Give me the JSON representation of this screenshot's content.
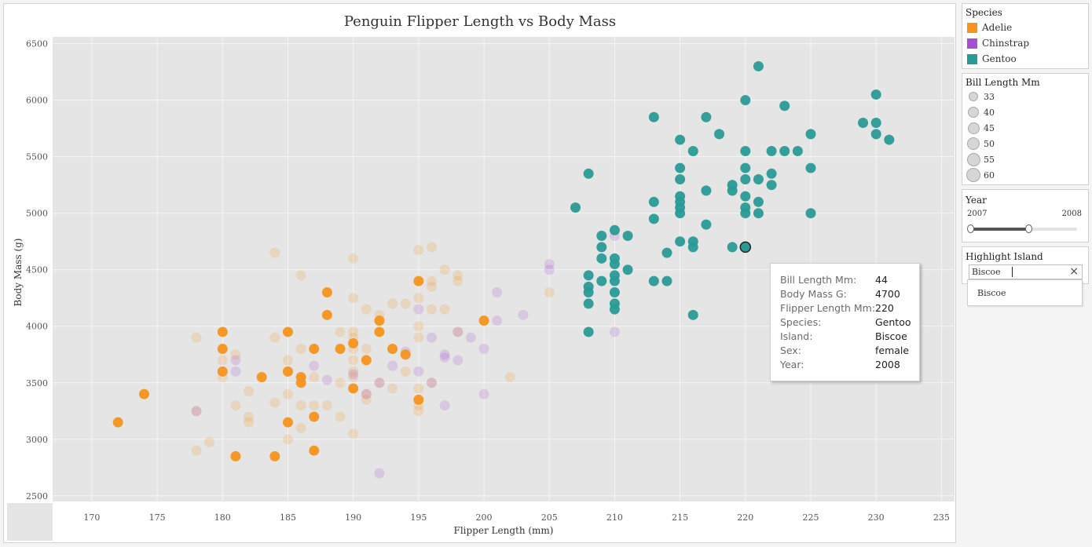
{
  "colors": {
    "adelie": "#f7941d",
    "chinstrap": "#a64fd0",
    "gentoo": "#2a9a97",
    "plot_bg": "#e5e5e5",
    "gridline": "#f5f5f5"
  },
  "chart_data": {
    "type": "scatter",
    "title": "Penguin Flipper Length vs Body Mass",
    "xlabel": "Flipper Length (mm)",
    "ylabel": "Body Mass (g)",
    "xlim": [
      167,
      236
    ],
    "ylim": [
      2450,
      6560
    ],
    "xticks": [
      "170",
      "175",
      "180",
      "185",
      "190",
      "195",
      "200",
      "205",
      "210",
      "215",
      "220",
      "225",
      "230",
      "235"
    ],
    "yticks": [
      "2500",
      "3000",
      "3500",
      "4000",
      "4500",
      "5000",
      "5500",
      "6000",
      "6500"
    ],
    "grid": true,
    "highlight_island": "Biscoe",
    "series": [
      {
        "name": "Adelie",
        "highlighted": [
          [
            172,
            3150
          ],
          [
            174,
            3400
          ],
          [
            180,
            3950
          ],
          [
            180,
            3800
          ],
          [
            180,
            3600
          ],
          [
            181,
            2850
          ],
          [
            183,
            3550
          ],
          [
            184,
            2850
          ],
          [
            185,
            3950
          ],
          [
            185,
            3600
          ],
          [
            185,
            3150
          ],
          [
            186,
            3550
          ],
          [
            186,
            3500
          ],
          [
            187,
            3800
          ],
          [
            187,
            3200
          ],
          [
            187,
            2900
          ],
          [
            188,
            4300
          ],
          [
            188,
            4100
          ],
          [
            189,
            3800
          ],
          [
            190,
            3850
          ],
          [
            190,
            3450
          ],
          [
            191,
            3700
          ],
          [
            192,
            4050
          ],
          [
            192,
            3950
          ],
          [
            193,
            3800
          ],
          [
            194,
            3750
          ],
          [
            195,
            4400
          ],
          [
            195,
            3350
          ],
          [
            200,
            4050
          ]
        ],
        "dimmed": [
          [
            178,
            3900
          ],
          [
            178,
            3250
          ],
          [
            178,
            2900
          ],
          [
            179,
            2975
          ],
          [
            180,
            3700
          ],
          [
            180,
            3550
          ],
          [
            181,
            3750
          ],
          [
            181,
            3300
          ],
          [
            182,
            3425
          ],
          [
            182,
            3200
          ],
          [
            182,
            3150
          ],
          [
            184,
            4650
          ],
          [
            184,
            3900
          ],
          [
            184,
            3325
          ],
          [
            185,
            3700
          ],
          [
            185,
            3400
          ],
          [
            185,
            3000
          ],
          [
            186,
            4450
          ],
          [
            186,
            3800
          ],
          [
            186,
            3300
          ],
          [
            186,
            3100
          ],
          [
            187,
            3550
          ],
          [
            187,
            3300
          ],
          [
            188,
            3300
          ],
          [
            189,
            3950
          ],
          [
            189,
            3500
          ],
          [
            189,
            3200
          ],
          [
            190,
            4600
          ],
          [
            190,
            4250
          ],
          [
            190,
            3950
          ],
          [
            190,
            3900
          ],
          [
            190,
            3800
          ],
          [
            190,
            3700
          ],
          [
            190,
            3600
          ],
          [
            190,
            3550
          ],
          [
            190,
            3050
          ],
          [
            191,
            4150
          ],
          [
            191,
            3800
          ],
          [
            191,
            3400
          ],
          [
            191,
            3350
          ],
          [
            192,
            4100
          ],
          [
            192,
            3500
          ],
          [
            193,
            4200
          ],
          [
            193,
            3450
          ],
          [
            194,
            4200
          ],
          [
            194,
            3600
          ],
          [
            195,
            4675
          ],
          [
            195,
            4250
          ],
          [
            195,
            4000
          ],
          [
            195,
            3900
          ],
          [
            195,
            3450
          ],
          [
            195,
            3300
          ],
          [
            195,
            3250
          ],
          [
            196,
            4700
          ],
          [
            196,
            4400
          ],
          [
            196,
            4350
          ],
          [
            196,
            4150
          ],
          [
            196,
            3500
          ],
          [
            197,
            4500
          ],
          [
            197,
            4150
          ],
          [
            198,
            4450
          ],
          [
            198,
            4400
          ],
          [
            198,
            3950
          ],
          [
            202,
            3550
          ],
          [
            205,
            4300
          ]
        ]
      },
      {
        "name": "Chinstrap",
        "highlighted": [],
        "dimmed": [
          [
            178,
            3250
          ],
          [
            181,
            3700
          ],
          [
            181,
            3600
          ],
          [
            187,
            3650
          ],
          [
            188,
            3525
          ],
          [
            190,
            3575
          ],
          [
            191,
            3400
          ],
          [
            192,
            3500
          ],
          [
            192,
            2700
          ],
          [
            193,
            3650
          ],
          [
            193,
            3800
          ],
          [
            194,
            3775
          ],
          [
            195,
            4150
          ],
          [
            195,
            3600
          ],
          [
            196,
            3900
          ],
          [
            196,
            3500
          ],
          [
            197,
            3750
          ],
          [
            197,
            3725
          ],
          [
            197,
            3300
          ],
          [
            198,
            3950
          ],
          [
            198,
            3700
          ],
          [
            199,
            3900
          ],
          [
            200,
            3800
          ],
          [
            200,
            3400
          ],
          [
            201,
            4300
          ],
          [
            201,
            4050
          ],
          [
            203,
            4100
          ],
          [
            205,
            4550
          ],
          [
            205,
            4500
          ],
          [
            210,
            4800
          ],
          [
            210,
            3950
          ]
        ]
      },
      {
        "name": "Gentoo",
        "highlighted": [
          [
            207,
            5050
          ],
          [
            208,
            5350
          ],
          [
            208,
            4450
          ],
          [
            208,
            4350
          ],
          [
            208,
            4300
          ],
          [
            208,
            4200
          ],
          [
            208,
            3950
          ],
          [
            209,
            4800
          ],
          [
            209,
            4700
          ],
          [
            209,
            4600
          ],
          [
            209,
            4400
          ],
          [
            210,
            4850
          ],
          [
            210,
            4600
          ],
          [
            210,
            4550
          ],
          [
            210,
            4450
          ],
          [
            210,
            4400
          ],
          [
            210,
            4300
          ],
          [
            210,
            4200
          ],
          [
            210,
            4150
          ],
          [
            211,
            4800
          ],
          [
            211,
            4500
          ],
          [
            213,
            5850
          ],
          [
            213,
            5100
          ],
          [
            213,
            4950
          ],
          [
            213,
            4400
          ],
          [
            214,
            4650
          ],
          [
            214,
            4400
          ],
          [
            215,
            5650
          ],
          [
            215,
            5400
          ],
          [
            215,
            5300
          ],
          [
            215,
            5150
          ],
          [
            215,
            5100
          ],
          [
            215,
            5050
          ],
          [
            215,
            5000
          ],
          [
            215,
            4750
          ],
          [
            216,
            5550
          ],
          [
            216,
            4750
          ],
          [
            216,
            4700
          ],
          [
            216,
            4100
          ],
          [
            217,
            5850
          ],
          [
            217,
            5200
          ],
          [
            217,
            4900
          ],
          [
            218,
            5700
          ],
          [
            219,
            5250
          ],
          [
            219,
            5200
          ],
          [
            219,
            4700
          ],
          [
            220,
            6000
          ],
          [
            220,
            5550
          ],
          [
            220,
            5400
          ],
          [
            220,
            5300
          ],
          [
            220,
            5150
          ],
          [
            220,
            5050
          ],
          [
            220,
            5000
          ],
          [
            220,
            4700
          ],
          [
            221,
            6300
          ],
          [
            221,
            5300
          ],
          [
            221,
            5100
          ],
          [
            221,
            5000
          ],
          [
            222,
            5550
          ],
          [
            222,
            5350
          ],
          [
            222,
            5250
          ],
          [
            223,
            5950
          ],
          [
            223,
            5550
          ],
          [
            224,
            5550
          ],
          [
            225,
            5700
          ],
          [
            225,
            5400
          ],
          [
            225,
            5000
          ],
          [
            229,
            5800
          ],
          [
            230,
            6050
          ],
          [
            230,
            5800
          ],
          [
            230,
            5700
          ],
          [
            231,
            5650
          ]
        ],
        "dimmed": []
      }
    ],
    "selected_point": [
      220,
      4700
    ]
  },
  "legend_species": {
    "title": "Species",
    "items": [
      {
        "label": "Adelie",
        "color": "#f7941d"
      },
      {
        "label": "Chinstrap",
        "color": "#a64fd0"
      },
      {
        "label": "Gentoo",
        "color": "#2a9a97"
      }
    ]
  },
  "legend_size": {
    "title": "Bill Length Mm",
    "items": [
      "33",
      "40",
      "45",
      "50",
      "55",
      "60"
    ]
  },
  "year_filter": {
    "title": "Year",
    "min_label": "2007",
    "max_label": "2008"
  },
  "highlight_filter": {
    "title": "Highlight Island",
    "value": "Biscoe",
    "clear_icon": "×",
    "option": "Biscoe"
  },
  "tooltip": {
    "rows": [
      {
        "key": "Bill Length Mm:",
        "value": "44"
      },
      {
        "key": "Body Mass G:",
        "value": "4700"
      },
      {
        "key": "Flipper Length Mm:",
        "value": "220"
      },
      {
        "key": "Species:",
        "value": "Gentoo"
      },
      {
        "key": "Island:",
        "value": "Biscoe"
      },
      {
        "key": "Sex:",
        "value": "female"
      },
      {
        "key": "Year:",
        "value": "2008"
      }
    ]
  }
}
